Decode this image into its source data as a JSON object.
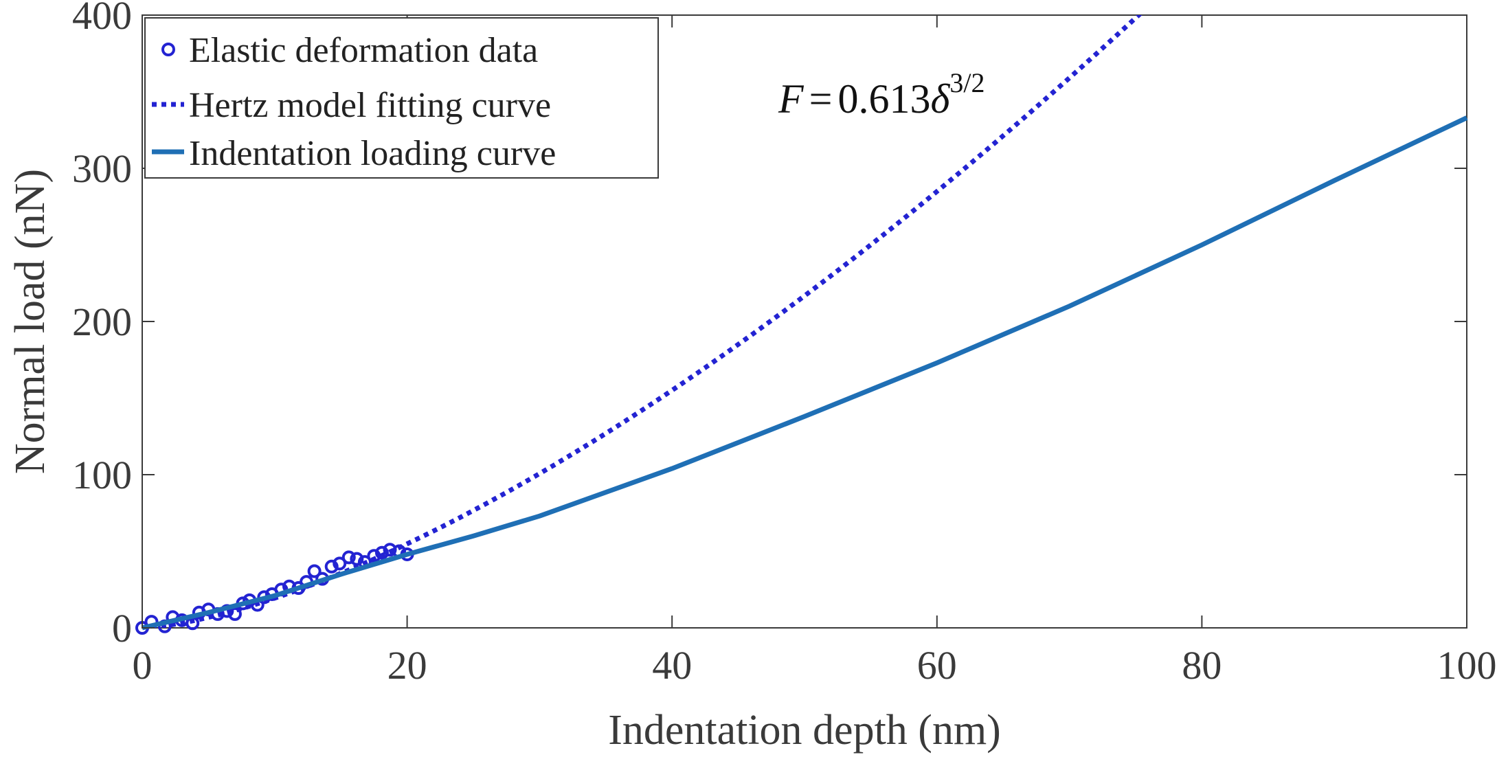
{
  "chart_data": {
    "type": "line",
    "title": "",
    "xlabel": "Indentation depth (nm)",
    "ylabel": "Normal load (nN)",
    "xlim": [
      0,
      100
    ],
    "ylim": [
      0,
      400
    ],
    "xticks": [
      0,
      20,
      40,
      60,
      80,
      100
    ],
    "yticks": [
      0,
      100,
      200,
      300,
      400
    ],
    "grid": false,
    "legend_position": "top-left",
    "annotation": {
      "lhs": "F",
      "equals": "=",
      "coefficient": "0.613",
      "variable": "δ",
      "exponent": "3/2"
    },
    "colors": {
      "data": "#2323d2",
      "hertz": "#2323d2",
      "loading": "#1f6fb5",
      "axis": "#3a3a3a"
    },
    "series": [
      {
        "name": "Elastic deformation data",
        "style": "markers",
        "marker": "circle",
        "x": [
          0,
          0.7,
          1.7,
          2.3,
          3.0,
          3.8,
          4.3,
          5.0,
          5.7,
          6.4,
          7.0,
          7.6,
          8.1,
          8.7,
          9.2,
          9.8,
          10.5,
          11.1,
          11.8,
          12.4,
          13.0,
          13.6,
          14.3,
          14.9,
          15.6,
          16.2,
          16.8,
          17.5,
          18.1,
          18.7,
          19.4,
          20.0
        ],
        "y": [
          0,
          4,
          1,
          7,
          5,
          3,
          10,
          12,
          9,
          11,
          9,
          16,
          18,
          15,
          20,
          22,
          25,
          27,
          26,
          30,
          37,
          32,
          40,
          42,
          46,
          45,
          43,
          47,
          49,
          51,
          50,
          48
        ]
      },
      {
        "name": "Hertz model fitting curve",
        "style": "dotted",
        "equation": "F = 0.613 * x^1.5",
        "x": [
          0,
          10,
          20,
          30,
          40,
          50,
          60,
          70,
          75
        ],
        "y": [
          0,
          19.4,
          54.8,
          100.7,
          155.1,
          216.7,
          284.9,
          359.0,
          398.2
        ]
      },
      {
        "name": "Indentation loading curve",
        "style": "solid",
        "x": [
          0,
          5,
          10,
          15,
          20,
          25,
          30,
          40,
          50,
          60,
          70,
          80,
          90,
          100
        ],
        "y": [
          0,
          10,
          21,
          35,
          48,
          60,
          73,
          104,
          138,
          173,
          210,
          250,
          292,
          333
        ]
      }
    ]
  }
}
